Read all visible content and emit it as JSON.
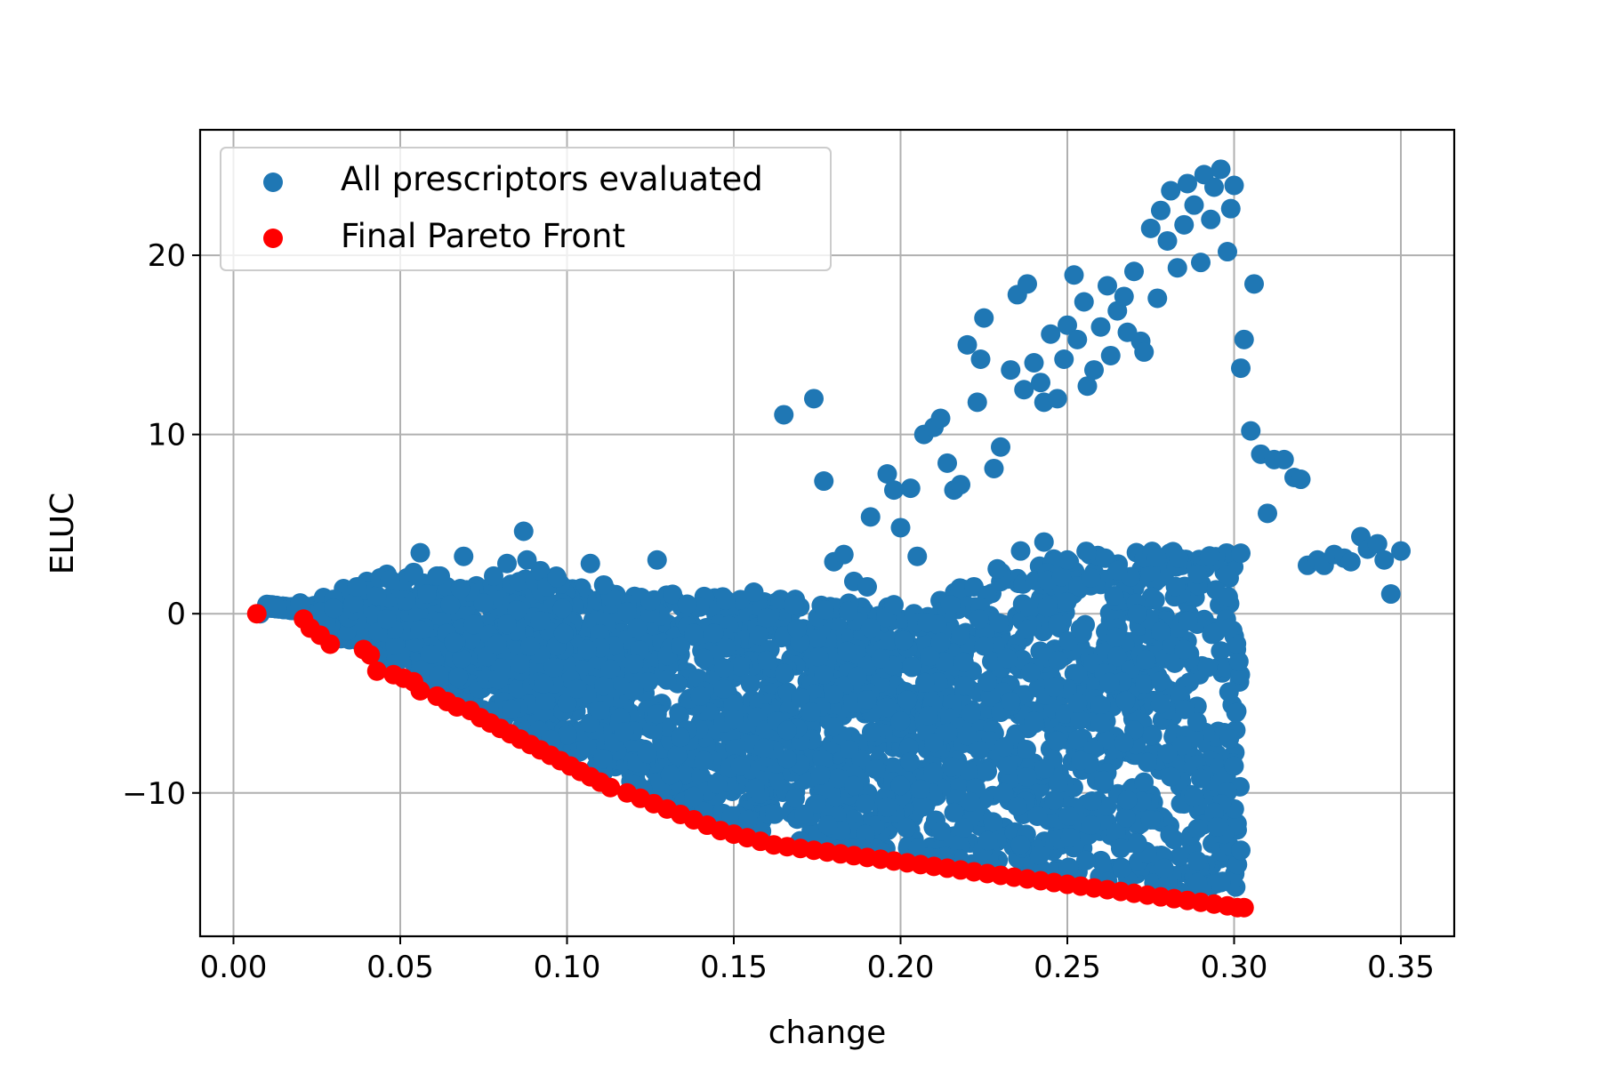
{
  "chart_data": {
    "type": "scatter",
    "title": "",
    "xlabel": "change",
    "ylabel": "ELUC",
    "xlim": [
      -0.01,
      0.366
    ],
    "ylim": [
      -18.0,
      27.0
    ],
    "xticks": [
      0.0,
      0.05,
      0.1,
      0.15,
      0.2,
      0.25,
      0.3,
      0.35
    ],
    "xtick_labels": [
      "0.00",
      "0.05",
      "0.10",
      "0.15",
      "0.20",
      "0.25",
      "0.30",
      "0.35"
    ],
    "yticks": [
      -10,
      0,
      10,
      20
    ],
    "ytick_labels": [
      "−10",
      "0",
      "10",
      "20"
    ],
    "grid": true,
    "legend_position": "upper left",
    "series": [
      {
        "name": "All prescriptors evaluated",
        "color": "#1f77b4",
        "x": [
          0.008,
          0.013,
          0.02,
          0.027,
          0.033,
          0.04,
          0.046,
          0.052,
          0.056,
          0.058,
          0.062,
          0.069,
          0.072,
          0.078,
          0.082,
          0.087,
          0.088,
          0.092,
          0.094,
          0.097,
          0.107,
          0.111,
          0.118,
          0.121,
          0.125,
          0.127,
          0.134,
          0.138,
          0.141,
          0.144,
          0.147,
          0.156,
          0.16,
          0.164,
          0.165,
          0.168,
          0.174,
          0.177,
          0.18,
          0.183,
          0.186,
          0.19,
          0.191,
          0.196,
          0.198,
          0.2,
          0.203,
          0.205,
          0.207,
          0.21,
          0.212,
          0.214,
          0.216,
          0.218,
          0.22,
          0.223,
          0.224,
          0.225,
          0.228,
          0.23,
          0.233,
          0.235,
          0.237,
          0.238,
          0.24,
          0.242,
          0.243,
          0.245,
          0.247,
          0.249,
          0.25,
          0.252,
          0.253,
          0.255,
          0.256,
          0.258,
          0.26,
          0.262,
          0.263,
          0.265,
          0.267,
          0.268,
          0.27,
          0.272,
          0.273,
          0.275,
          0.277,
          0.278,
          0.28,
          0.281,
          0.283,
          0.285,
          0.286,
          0.288,
          0.29,
          0.291,
          0.293,
          0.294,
          0.296,
          0.298,
          0.299,
          0.3,
          0.302,
          0.303,
          0.305,
          0.306,
          0.308,
          0.31,
          0.312,
          0.315,
          0.318,
          0.32,
          0.322,
          0.325,
          0.327,
          0.33,
          0.333,
          0.335,
          0.338,
          0.34,
          0.343,
          0.345,
          0.347,
          0.35,
          0.294,
          0.284,
          0.289,
          0.274,
          0.279,
          0.299,
          0.301,
          0.297,
          0.287,
          0.276,
          0.271,
          0.266,
          0.261,
          0.257,
          0.251,
          0.246,
          0.241,
          0.236,
          0.231,
          0.226,
          0.221,
          0.216,
          0.206,
          0.196,
          0.186,
          0.176,
          0.166,
          0.156,
          0.146,
          0.136,
          0.126,
          0.116,
          0.106,
          0.096,
          0.086,
          0.076,
          0.066,
          0.056,
          0.046,
          0.036,
          0.026,
          0.3,
          0.29,
          0.28,
          0.27,
          0.26,
          0.25,
          0.24,
          0.23,
          0.22,
          0.21,
          0.2,
          0.19,
          0.18,
          0.17,
          0.16,
          0.15,
          0.14,
          0.13,
          0.12,
          0.11,
          0.1,
          0.09,
          0.08,
          0.07,
          0.06,
          0.05,
          0.04,
          0.03,
          0.302,
          0.295,
          0.288,
          0.281,
          0.274,
          0.267,
          0.26,
          0.253,
          0.246,
          0.239,
          0.232,
          0.225,
          0.218,
          0.211,
          0.204,
          0.197,
          0.19,
          0.183,
          0.176,
          0.169,
          0.162,
          0.155,
          0.148,
          0.141,
          0.134,
          0.127,
          0.12,
          0.113,
          0.106,
          0.099,
          0.092,
          0.085,
          0.078,
          0.071,
          0.064,
          0.057,
          0.05,
          0.043,
          0.036,
          0.03,
          0.296,
          0.289,
          0.282,
          0.275,
          0.268,
          0.261,
          0.254,
          0.247,
          0.24,
          0.233,
          0.226,
          0.219,
          0.212,
          0.205,
          0.198,
          0.191,
          0.184,
          0.177,
          0.17,
          0.163,
          0.156,
          0.149,
          0.142,
          0.135,
          0.128,
          0.121,
          0.114,
          0.107,
          0.1,
          0.093,
          0.086,
          0.079,
          0.072,
          0.065,
          0.058,
          0.051,
          0.044,
          0.037,
          0.292,
          0.285,
          0.278,
          0.271,
          0.264,
          0.257,
          0.25,
          0.243,
          0.236,
          0.229,
          0.222,
          0.215,
          0.208,
          0.201,
          0.194,
          0.187,
          0.18,
          0.173,
          0.166,
          0.159,
          0.152,
          0.145,
          0.138,
          0.131,
          0.124,
          0.117,
          0.11,
          0.103,
          0.096,
          0.089,
          0.082,
          0.075,
          0.068,
          0.061,
          0.054,
          0.047
        ],
        "y": [
          0.0,
          0.3,
          0.6,
          0.9,
          1.4,
          1.8,
          2.2,
          2.0,
          3.4,
          1.6,
          2.1,
          3.2,
          1.4,
          2.1,
          2.8,
          4.6,
          3.0,
          2.4,
          1.5,
          2.0,
          2.8,
          1.6,
          0.1,
          -0.8,
          0.7,
          3.0,
          -1.8,
          -1.1,
          -2.5,
          -1.1,
          -4.2,
          1.2,
          -2.6,
          0.8,
          11.1,
          0.5,
          12.0,
          7.4,
          2.9,
          3.3,
          1.8,
          1.5,
          5.4,
          7.8,
          6.9,
          4.8,
          7.0,
          3.2,
          10.0,
          10.4,
          10.9,
          8.4,
          6.9,
          7.2,
          15.0,
          11.8,
          14.2,
          16.5,
          8.1,
          9.3,
          13.6,
          17.8,
          12.5,
          18.4,
          14.0,
          12.9,
          11.8,
          15.6,
          12.0,
          14.2,
          16.1,
          18.9,
          15.3,
          17.4,
          12.7,
          13.6,
          16.0,
          18.3,
          14.4,
          16.9,
          17.7,
          15.7,
          19.1,
          15.2,
          14.6,
          21.5,
          17.6,
          22.5,
          20.8,
          23.6,
          19.3,
          21.7,
          24.0,
          22.8,
          19.6,
          24.5,
          22.0,
          23.8,
          24.8,
          20.2,
          22.6,
          23.9,
          13.7,
          15.3,
          10.2,
          18.4,
          8.9,
          5.6,
          8.6,
          8.6,
          7.6,
          7.5,
          2.7,
          3.0,
          2.7,
          3.3,
          3.1,
          2.9,
          4.3,
          3.6,
          3.9,
          3.0,
          1.1,
          3.5,
          -11.1,
          -10.6,
          -12.0,
          -13.4,
          -14.2,
          -15.0,
          -14.0,
          -12.3,
          -10.1,
          -11.5,
          -12.8,
          -13.1,
          -9.5,
          -11.8,
          -12.5,
          -10.4,
          -11.3,
          -12.9,
          -10.0,
          -8.8,
          -10.5,
          -11.1,
          -9.8,
          -10.8,
          -9.6,
          -9.0,
          -8.1,
          -7.4,
          -9.3,
          -6.5,
          -5.7,
          -5.8,
          -4.5,
          -3.9,
          -3.2,
          -2.4,
          -1.6,
          -0.9,
          -0.3,
          0.2,
          0.1,
          -8.5,
          -9.2,
          -7.8,
          -6.5,
          -5.1,
          -4.2,
          -3.0,
          -5.5,
          -6.8,
          -7.2,
          -6.0,
          -4.8,
          -6.3,
          -7.1,
          -8.0,
          -5.9,
          -4.6,
          -3.7,
          -2.8,
          -1.9,
          -1.0,
          -0.2,
          0.4,
          0.9,
          1.3,
          1.6,
          1.3,
          0.8,
          -13.2,
          -11.9,
          -10.2,
          -9.1,
          -8.3,
          -7.2,
          -6.1,
          -5.0,
          -4.1,
          -3.3,
          -2.5,
          -1.8,
          -1.2,
          -0.6,
          0.0,
          -1.5,
          -2.9,
          -4.0,
          -5.2,
          -6.4,
          -7.6,
          -8.7,
          -9.4,
          -8.2,
          -6.9,
          -5.6,
          -4.3,
          -3.1,
          -2.0,
          -1.1,
          -0.4,
          0.2,
          0.8,
          1.2,
          1.5,
          1.7,
          1.4,
          1.0,
          0.6,
          0.3,
          -15.0,
          -13.8,
          -12.6,
          -11.5,
          -10.4,
          -9.3,
          -8.2,
          -7.1,
          -6.0,
          -4.9,
          -3.8,
          -2.7,
          -1.6,
          -0.5,
          0.5,
          -0.8,
          -2.1,
          -3.4,
          -4.7,
          -6.0,
          -7.3,
          -8.6,
          -9.9,
          -10.5,
          -9.4,
          -8.3,
          -7.2,
          -6.1,
          -5.0,
          -3.9,
          -2.8,
          -1.7,
          -0.6,
          0.5,
          1.1,
          1.8,
          2.0,
          1.5,
          -3.0,
          -2.0,
          -1.0,
          0.0,
          1.0,
          2.0,
          3.0,
          4.0,
          3.5,
          2.5,
          1.5,
          0.5,
          -0.5,
          -1.5,
          -2.5,
          -3.5,
          -4.5,
          -5.5,
          -6.5,
          -7.5,
          -8.5,
          -9.5,
          -10.2,
          -9.0,
          -7.8,
          -6.6,
          -5.4,
          -4.2,
          -3.0,
          -1.8,
          -0.6,
          0.6,
          1.4,
          2.1,
          2.3,
          1.9
        ]
      },
      {
        "name": "Final Pareto Front",
        "color": "#ff0000",
        "x": [
          0.007,
          0.021,
          0.023,
          0.026,
          0.029,
          0.039,
          0.041,
          0.043,
          0.048,
          0.051,
          0.054,
          0.056,
          0.061,
          0.064,
          0.067,
          0.071,
          0.074,
          0.077,
          0.08,
          0.083,
          0.086,
          0.089,
          0.092,
          0.095,
          0.098,
          0.101,
          0.104,
          0.107,
          0.11,
          0.113,
          0.118,
          0.122,
          0.126,
          0.13,
          0.134,
          0.138,
          0.142,
          0.146,
          0.15,
          0.154,
          0.158,
          0.162,
          0.166,
          0.17,
          0.174,
          0.178,
          0.182,
          0.186,
          0.19,
          0.194,
          0.198,
          0.202,
          0.206,
          0.21,
          0.214,
          0.218,
          0.222,
          0.226,
          0.23,
          0.234,
          0.238,
          0.242,
          0.246,
          0.25,
          0.254,
          0.258,
          0.262,
          0.266,
          0.27,
          0.274,
          0.278,
          0.282,
          0.286,
          0.29,
          0.294,
          0.298,
          0.301,
          0.303
        ],
        "y": [
          0.0,
          -0.3,
          -0.8,
          -1.2,
          -1.7,
          -2.0,
          -2.3,
          -3.2,
          -3.4,
          -3.6,
          -3.8,
          -4.3,
          -4.6,
          -4.9,
          -5.2,
          -5.4,
          -5.8,
          -6.1,
          -6.4,
          -6.7,
          -7.0,
          -7.3,
          -7.6,
          -7.9,
          -8.2,
          -8.5,
          -8.8,
          -9.1,
          -9.4,
          -9.7,
          -10.0,
          -10.3,
          -10.6,
          -10.9,
          -11.2,
          -11.5,
          -11.8,
          -12.1,
          -12.3,
          -12.5,
          -12.7,
          -12.9,
          -13.0,
          -13.1,
          -13.2,
          -13.3,
          -13.4,
          -13.5,
          -13.6,
          -13.7,
          -13.8,
          -13.9,
          -14.0,
          -14.1,
          -14.2,
          -14.3,
          -14.4,
          -14.5,
          -14.6,
          -14.7,
          -14.8,
          -14.9,
          -15.0,
          -15.1,
          -15.2,
          -15.3,
          -15.4,
          -15.5,
          -15.6,
          -15.7,
          -15.8,
          -15.9,
          -16.0,
          -16.1,
          -16.2,
          -16.3,
          -16.4,
          -16.4
        ]
      }
    ]
  }
}
